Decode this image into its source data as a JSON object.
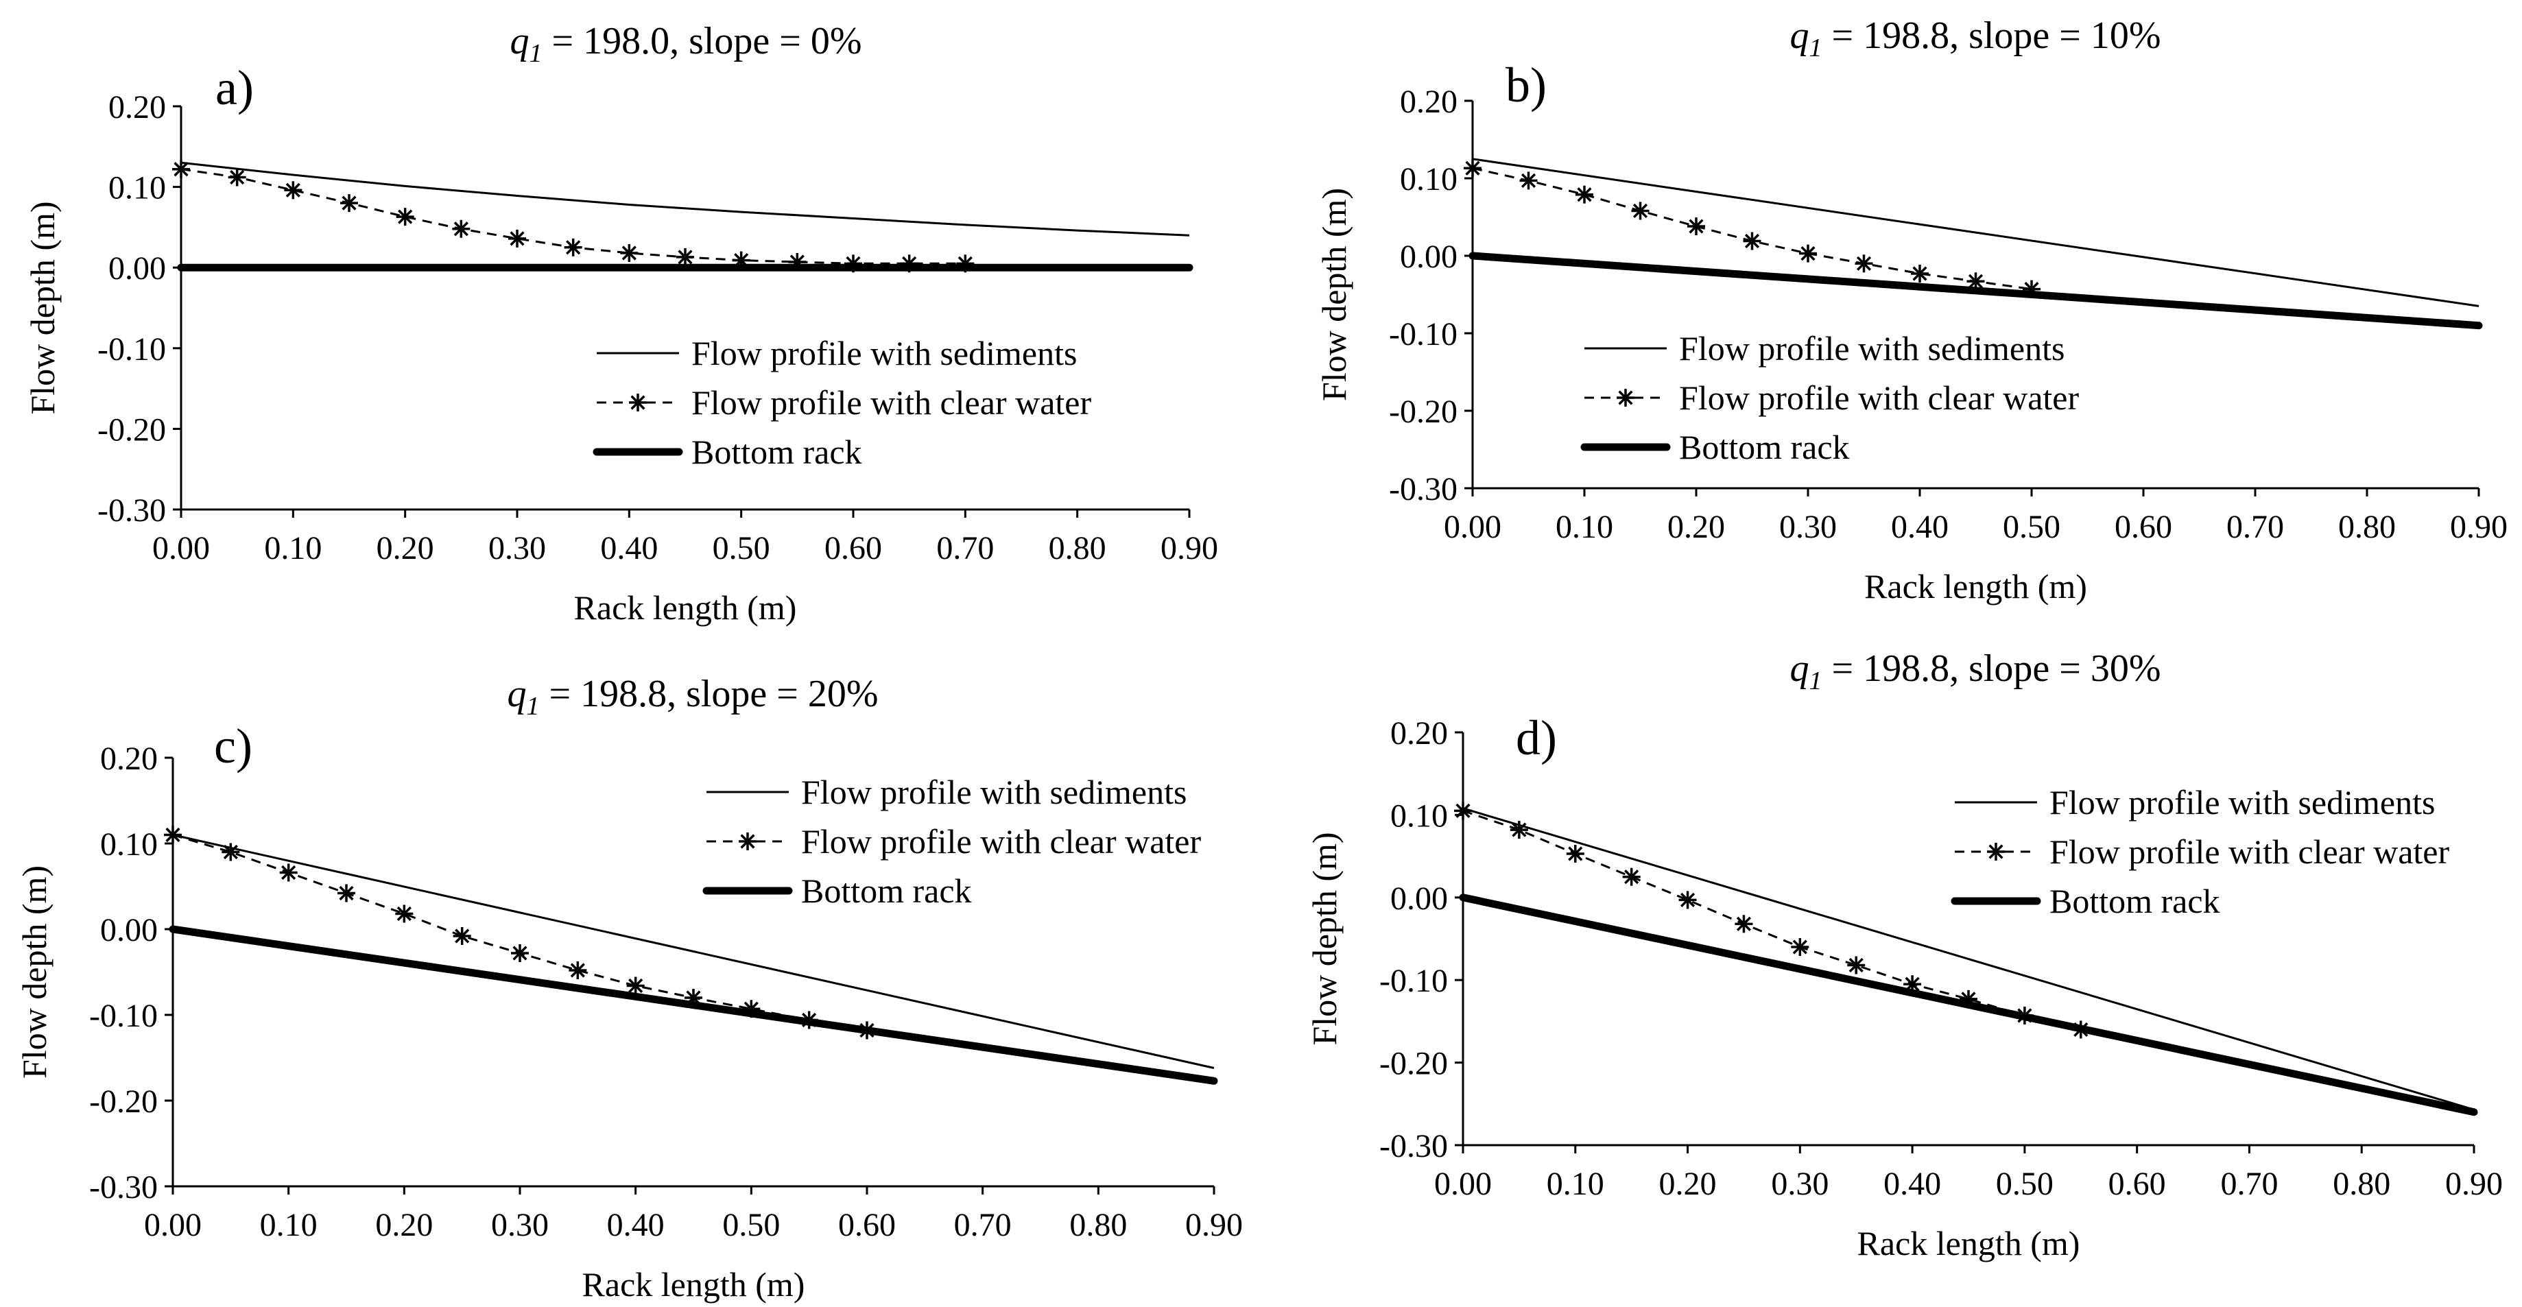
{
  "figure": {
    "colors": {
      "ink": "#000000",
      "background": "#ffffff"
    }
  },
  "legend_labels": {
    "sediments": "Flow profile with sediments",
    "clear": "Flow profile with clear water",
    "rack": "Bottom rack"
  },
  "chart_data": [
    {
      "type": "line",
      "panel": "a)",
      "title_symbol": "q",
      "title_subscript": "1",
      "title_rest": " = 198.0,  slope = 0%",
      "xlabel": "Rack length  (m)",
      "ylabel": "Flow depth (m)",
      "xlim": [
        0,
        0.9
      ],
      "ylim": [
        -0.3,
        0.2
      ],
      "xticks": [
        0,
        0.1,
        0.2,
        0.3,
        0.4,
        0.5,
        0.6,
        0.7,
        0.8,
        0.9
      ],
      "xtick_labels": [
        "0.00",
        "0.10",
        "0.20",
        "0.30",
        "0.40",
        "0.50",
        "0.60",
        "0.70",
        "0.80",
        "0.90"
      ],
      "yticks": [
        0.2,
        0.1,
        0,
        -0.1,
        -0.2,
        -0.3
      ],
      "ytick_labels": [
        "0.20",
        "0.10",
        "0.00",
        "-0.10",
        "-0.20",
        "-0.30"
      ],
      "legend_position": "lower-right",
      "series": [
        {
          "name": "Flow profile with sediments",
          "style": "solid-thin",
          "x": [
            0,
            0.1,
            0.2,
            0.3,
            0.4,
            0.5,
            0.6,
            0.7,
            0.8,
            0.9
          ],
          "y": [
            0.13,
            0.115,
            0.101,
            0.089,
            0.078,
            0.069,
            0.061,
            0.053,
            0.046,
            0.04
          ]
        },
        {
          "name": "Flow profile with clear water",
          "style": "dashed-star",
          "x": [
            0,
            0.05,
            0.1,
            0.15,
            0.2,
            0.25,
            0.3,
            0.35,
            0.4,
            0.45,
            0.5,
            0.55,
            0.6,
            0.65,
            0.7
          ],
          "y": [
            0.122,
            0.112,
            0.096,
            0.08,
            0.063,
            0.048,
            0.036,
            0.025,
            0.018,
            0.013,
            0.009,
            0.007,
            0.005,
            0.005,
            0.005
          ]
        },
        {
          "name": "Bottom rack",
          "style": "solid-thick",
          "x": [
            0,
            0.9
          ],
          "y": [
            0,
            0
          ]
        }
      ]
    },
    {
      "type": "line",
      "panel": "b)",
      "title_symbol": "q",
      "title_subscript": "1",
      "title_rest": " = 198.8,  slope = 10%",
      "xlabel": "Rack length  (m)",
      "ylabel": "Flow depth (m)",
      "xlim": [
        0,
        0.9
      ],
      "ylim": [
        -0.3,
        0.2
      ],
      "xticks": [
        0,
        0.1,
        0.2,
        0.3,
        0.4,
        0.5,
        0.6,
        0.7,
        0.8,
        0.9
      ],
      "xtick_labels": [
        "0.00",
        "0.10",
        "0.20",
        "0.30",
        "0.40",
        "0.50",
        "0.60",
        "0.70",
        "0.80",
        "0.90"
      ],
      "yticks": [
        0.2,
        0.1,
        0,
        -0.1,
        -0.2,
        -0.3
      ],
      "ytick_labels": [
        "0.20",
        "0.10",
        "0.00",
        "-0.10",
        "-0.20",
        "-0.30"
      ],
      "legend_position": "lower-left",
      "series": [
        {
          "name": "Flow profile with sediments",
          "style": "solid-thin",
          "x": [
            0,
            0.9
          ],
          "y": [
            0.125,
            -0.065
          ]
        },
        {
          "name": "Flow profile with clear water",
          "style": "dashed-star",
          "x": [
            0,
            0.05,
            0.1,
            0.15,
            0.2,
            0.25,
            0.3,
            0.35,
            0.4,
            0.45,
            0.5
          ],
          "y": [
            0.113,
            0.097,
            0.079,
            0.058,
            0.038,
            0.019,
            0.003,
            -0.01,
            -0.023,
            -0.033,
            -0.043
          ]
        },
        {
          "name": "Bottom rack",
          "style": "solid-thick",
          "x": [
            0,
            0.9
          ],
          "y": [
            0,
            -0.09
          ]
        }
      ]
    },
    {
      "type": "line",
      "panel": "c)",
      "title_symbol": "q",
      "title_subscript": "1",
      "title_rest": " = 198.8,  slope = 20%",
      "xlabel": "Rack length  (m)",
      "ylabel": "Flow depth (m)",
      "xlim": [
        0,
        0.9
      ],
      "ylim": [
        -0.3,
        0.2
      ],
      "xticks": [
        0,
        0.1,
        0.2,
        0.3,
        0.4,
        0.5,
        0.6,
        0.7,
        0.8,
        0.9
      ],
      "xtick_labels": [
        "0.00",
        "0.10",
        "0.20",
        "0.30",
        "0.40",
        "0.50",
        "0.60",
        "0.70",
        "0.80",
        "0.90"
      ],
      "yticks": [
        0.2,
        0.1,
        0,
        -0.1,
        -0.2,
        -0.3
      ],
      "ytick_labels": [
        "0.20",
        "0.10",
        "0.00",
        "-0.10",
        "-0.20",
        "-0.30"
      ],
      "legend_position": "top-right",
      "series": [
        {
          "name": "Flow profile with sediments",
          "style": "solid-thin",
          "x": [
            0,
            0.9
          ],
          "y": [
            0.11,
            -0.162
          ]
        },
        {
          "name": "Flow profile with clear water",
          "style": "dashed-star",
          "x": [
            0,
            0.05,
            0.1,
            0.15,
            0.2,
            0.25,
            0.3,
            0.35,
            0.4,
            0.45,
            0.5,
            0.55,
            0.6
          ],
          "y": [
            0.11,
            0.09,
            0.066,
            0.042,
            0.018,
            -0.008,
            -0.028,
            -0.048,
            -0.066,
            -0.08,
            -0.093,
            -0.106,
            -0.118
          ]
        },
        {
          "name": "Bottom rack",
          "style": "solid-thick",
          "x": [
            0,
            0.9
          ],
          "y": [
            0,
            -0.177
          ]
        }
      ]
    },
    {
      "type": "line",
      "panel": "d)",
      "title_symbol": "q",
      "title_subscript": "1",
      "title_rest": " = 198.8,  slope = 30%",
      "xlabel": "Rack length  (m)",
      "ylabel": "Flow depth (m)",
      "xlim": [
        0,
        0.9
      ],
      "ylim": [
        -0.3,
        0.2
      ],
      "xticks": [
        0,
        0.1,
        0.2,
        0.3,
        0.4,
        0.5,
        0.6,
        0.7,
        0.8,
        0.9
      ],
      "xtick_labels": [
        "0.00",
        "0.10",
        "0.20",
        "0.30",
        "0.40",
        "0.50",
        "0.60",
        "0.70",
        "0.80",
        "0.90"
      ],
      "yticks": [
        0.2,
        0.1,
        0,
        -0.1,
        -0.2,
        -0.3
      ],
      "ytick_labels": [
        "0.20",
        "0.10",
        "0.00",
        "-0.10",
        "-0.20",
        "-0.30"
      ],
      "legend_position": "top-right",
      "series": [
        {
          "name": "Flow profile with sediments",
          "style": "solid-thin",
          "x": [
            0,
            0.9
          ],
          "y": [
            0.108,
            -0.257
          ]
        },
        {
          "name": "Flow profile with clear water",
          "style": "dashed-star",
          "x": [
            0,
            0.05,
            0.1,
            0.15,
            0.2,
            0.25,
            0.3,
            0.35,
            0.4,
            0.45,
            0.5,
            0.55
          ],
          "y": [
            0.105,
            0.082,
            0.053,
            0.025,
            -0.003,
            -0.032,
            -0.06,
            -0.082,
            -0.105,
            -0.123,
            -0.143,
            -0.16
          ]
        },
        {
          "name": "Bottom rack",
          "style": "solid-thick",
          "x": [
            0,
            0.9
          ],
          "y": [
            0,
            -0.26
          ]
        }
      ]
    }
  ]
}
